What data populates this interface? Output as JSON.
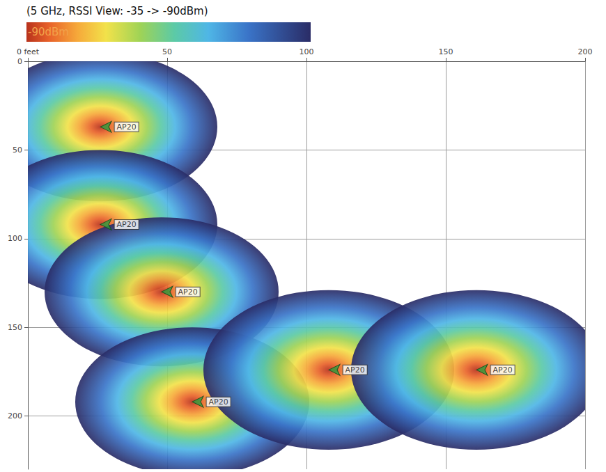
{
  "chart_data": {
    "type": "heatmap_floorplan",
    "title": "(5 GHz, RSSI View: -35 -> -90dBm)",
    "colorbar": {
      "label": "-90dBm"
    },
    "xlim": [
      0,
      200
    ],
    "xticks": [
      {
        "value": 0,
        "label": "0 feet"
      },
      50,
      100,
      150,
      200
    ],
    "ylim": [
      0,
      230
    ],
    "yticks": [
      0,
      50,
      100,
      150,
      200
    ],
    "grid": true,
    "marker": "arrow",
    "color": "#2e9e3e",
    "access_points": [
      {
        "label": "AP20",
        "x": 26,
        "y": 37,
        "radius": 42
      },
      {
        "label": "AP20",
        "x": 26,
        "y": 92,
        "radius": 42
      },
      {
        "label": "AP20",
        "x": 48,
        "y": 130,
        "radius": 42
      },
      {
        "label": "AP20",
        "x": 59,
        "y": 192,
        "radius": 42
      },
      {
        "label": "AP20",
        "x": 108,
        "y": 174,
        "radius": 45
      },
      {
        "label": "AP20",
        "x": 161,
        "y": 174,
        "radius": 45
      }
    ]
  }
}
